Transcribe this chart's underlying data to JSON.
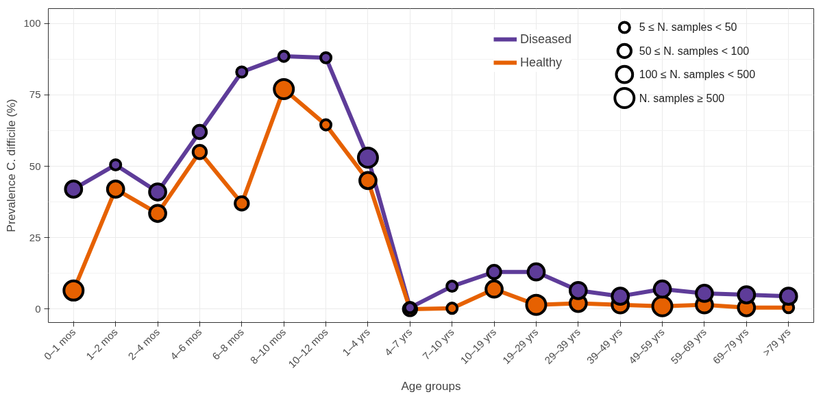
{
  "chart_data": {
    "type": "bubble",
    "xlabel": "Age groups",
    "ylabel": "Prevalence C. difficile (%)",
    "categories": [
      "0–1 mos",
      "1–2 mos",
      "2–4 mos",
      "4–6 mos",
      "6–8 mos",
      "8–10 mos",
      "10–12 mos",
      "1–4 yrs",
      "4–7 yrs",
      "7–10 yrs",
      "10–19 yrs",
      "19–29 yrs",
      "29–39 yrs",
      "39–49 yrs",
      "49–59 yrs",
      "59–69 yrs",
      "69–79 yrs",
      ">79 yrs"
    ],
    "series": [
      {
        "name": "Diseased",
        "type": "line",
        "marker": "none",
        "color": "#5e3c99",
        "values": [
          42,
          50.5,
          41,
          62,
          83,
          88.5,
          88,
          53,
          0.5,
          8,
          13,
          13,
          6.5,
          4.5,
          7,
          5.5,
          5,
          4.5
        ]
      },
      {
        "name": "Healthy",
        "type": "line",
        "marker": "none",
        "color": "#e66101",
        "values": [
          6.5,
          42,
          33.5,
          55,
          37,
          77,
          64.5,
          45,
          0,
          0.3,
          7,
          1.5,
          2,
          1.5,
          1,
          1.5,
          0.5,
          0.5
        ]
      },
      {
        "color": "#5e3c99",
        "values": [
          42,
          50.5,
          41,
          62,
          83,
          88.5,
          88,
          53,
          0.5,
          8,
          13,
          13,
          6.5,
          4.5,
          7,
          5.5,
          5,
          4.5
        ],
        "sizes": [
          0.72,
          0.29,
          0.72,
          0.48,
          0.29,
          0.29,
          0.29,
          1,
          0.29,
          0.29,
          0.48,
          0.72,
          0.72,
          0.72,
          0.72,
          0.72,
          0.72,
          0.72
        ]
      },
      {
        "color": "#e66101",
        "values": [
          6.5,
          42,
          33.5,
          55,
          37,
          77,
          64.5,
          45,
          0,
          0.3,
          7,
          1.5,
          2,
          1.5,
          1,
          1.5,
          0.5,
          0.5
        ],
        "sizes": [
          1,
          0.72,
          0.72,
          0.48,
          0.48,
          1,
          0.29,
          0.72,
          0.48,
          0.29,
          0.72,
          1,
          0.72,
          0.72,
          1,
          0.72,
          0.72,
          0.29
        ]
      }
    ],
    "size_legend": [
      {
        "value": 0.29,
        "label": "5 ≤ N. samples < 50"
      },
      {
        "value": 0.48,
        "label": "50 ≤ N. samples < 100"
      },
      {
        "value": 0.72,
        "label": "100 ≤ N. samples < 500"
      },
      {
        "value": 1,
        "label": "N. samples ≥ 500"
      }
    ],
    "ylim": [
      -4.7,
      105.2
    ],
    "yticks": [
      0,
      25,
      50,
      75,
      100
    ],
    "grid": true,
    "legend": "top right",
    "marker": "circle",
    "line_style": "solid"
  }
}
